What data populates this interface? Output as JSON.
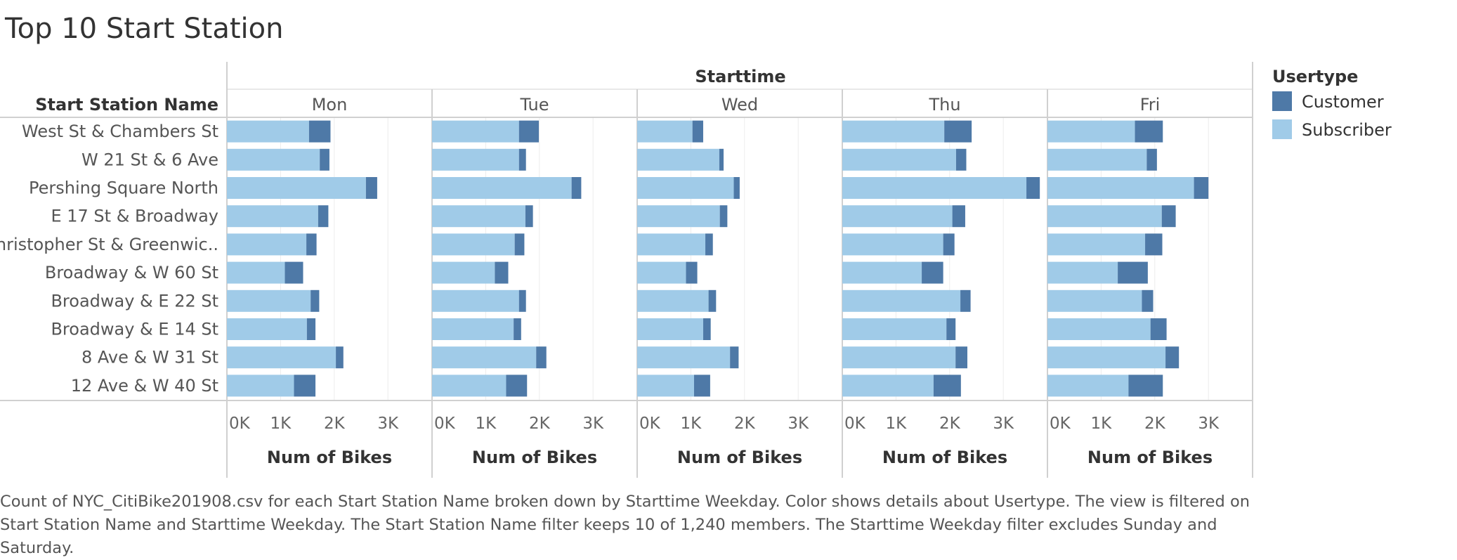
{
  "title": "Top 10 Start Station",
  "caption": "Count of NYC_CitiBike201908.csv for each Start Station Name broken down by Starttime Weekday.  Color shows details about Usertype. The view is filtered on Start Station Name and Starttime Weekday. The Start Station Name filter keeps 10 of 1,240 members. The Starttime Weekday filter excludes Sunday and Saturday.",
  "colors": {
    "customer": "#4e79a7",
    "subscriber": "#a0cbe8"
  },
  "chart_data": {
    "type": "bar",
    "orientation": "horizontal",
    "stacked": true,
    "row_header": "Start Station Name",
    "column_header": "Starttime",
    "xlabel": "Num of Bikes",
    "xlim": [
      0,
      3800
    ],
    "ticks": [
      {
        "value": 0,
        "label": "0K"
      },
      {
        "value": 1000,
        "label": "1K"
      },
      {
        "value": 2000,
        "label": "2K"
      },
      {
        "value": 3000,
        "label": "3K"
      }
    ],
    "legend": {
      "title": "Usertype",
      "position": "right",
      "entries": [
        "Customer",
        "Subscriber"
      ]
    },
    "categories": [
      "West St & Chambers St",
      "W 21 St & 6 Ave",
      "Pershing Square North",
      "E 17 St & Broadway",
      "Christopher St & Greenwic..",
      "Broadway & W 60 St",
      "Broadway & E 22 St",
      "Broadway & E 14 St",
      "8 Ave & W 31 St",
      "12 Ave & W 40 St"
    ],
    "panels": [
      {
        "day": "Mon",
        "subscriber": [
          1530,
          1730,
          2590,
          1700,
          1480,
          1080,
          1560,
          1490,
          2030,
          1250
        ],
        "customer": [
          400,
          180,
          210,
          190,
          190,
          340,
          160,
          160,
          140,
          400
        ]
      },
      {
        "day": "Tue",
        "subscriber": [
          1620,
          1620,
          2600,
          1740,
          1540,
          1170,
          1620,
          1520,
          1940,
          1380
        ],
        "customer": [
          370,
          130,
          180,
          140,
          180,
          250,
          130,
          140,
          190,
          390
        ]
      },
      {
        "day": "Wed",
        "subscriber": [
          1030,
          1530,
          1800,
          1540,
          1270,
          910,
          1330,
          1230,
          1730,
          1060
        ],
        "customer": [
          200,
          80,
          110,
          140,
          140,
          210,
          140,
          140,
          160,
          300
        ]
      },
      {
        "day": "Thu",
        "subscriber": [
          1900,
          2120,
          3430,
          2050,
          1880,
          1480,
          2200,
          1940,
          2110,
          1700
        ],
        "customer": [
          510,
          190,
          250,
          240,
          210,
          400,
          190,
          170,
          220,
          510
        ]
      },
      {
        "day": "Fri",
        "subscriber": [
          1630,
          1850,
          2730,
          2130,
          1820,
          1310,
          1760,
          1920,
          2200,
          1510
        ],
        "customer": [
          520,
          190,
          270,
          260,
          320,
          560,
          210,
          300,
          250,
          640
        ]
      }
    ]
  }
}
